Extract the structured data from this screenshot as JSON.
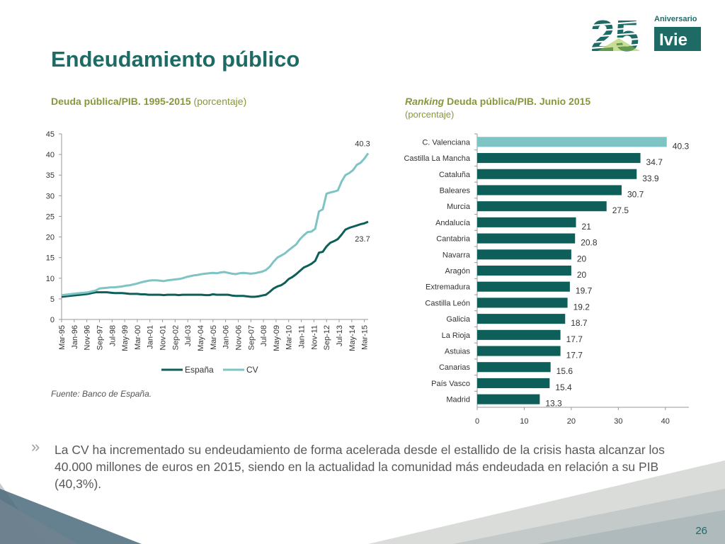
{
  "slide": {
    "title": "Endeudamiento público",
    "left_subtitle_bold": "Deuda pública/PIB. 1995-2015",
    "left_subtitle_normal": "(porcentaje)",
    "right_subtitle_italic": "Ranking",
    "right_subtitle_bold": "Deuda pública/PIB. Junio 2015",
    "right_subtitle_unit": "(porcentaje)",
    "source": "Fuente: Banco de España.",
    "bullet_mark": "»",
    "bullet": "La CV ha incrementado su endeudamiento de forma acelerada desde el estallido de la crisis hasta alcanzar los 40.000 millones de euros en 2015, siendo en la actualidad la comunidad más endeudada en relación a su PIB (40,3%).",
    "page_number": "26"
  },
  "logo": {
    "number": "25",
    "label_top": "Aniversario",
    "label_box": "Ivie",
    "colors": {
      "green_dark": "#1e6b66",
      "green_light": "#9bc23c"
    }
  },
  "colors": {
    "espana": "#0e5f5a",
    "cv": "#7fc4c4",
    "bar_highlight": "#7fc4c4",
    "bar": "#0e5f5a",
    "title": "#1e6b66",
    "subtitle": "#8a9637"
  },
  "chart_data": [
    {
      "type": "line",
      "ylim": [
        0,
        45
      ],
      "yticks": [
        0,
        5,
        10,
        15,
        20,
        25,
        30,
        35,
        40,
        45
      ],
      "x_tick_labels": [
        "Mar-95",
        "Jan-96",
        "Nov-96",
        "Sep-97",
        "Jul-98",
        "May-99",
        "Mar-00",
        "Jan-01",
        "Nov-01",
        "Sep-02",
        "Jul-03",
        "May-04",
        "Mar-05",
        "Jan-06",
        "Nov-06",
        "Sep-07",
        "Jul-08",
        "May-09",
        "Mar-10",
        "Jan-11",
        "Nov-11",
        "Sep-12",
        "Jul-13",
        "May-14",
        "Mar-15"
      ],
      "legend_position": "bottom",
      "legend": [
        "España",
        "CV"
      ],
      "annotations": [
        {
          "series": "CV",
          "text": "40.3"
        },
        {
          "series": "España",
          "text": "23.7"
        }
      ],
      "quarters": [
        "Mar-95",
        "Jun-95",
        "Sep-95",
        "Dec-95",
        "Mar-96",
        "Jun-96",
        "Sep-96",
        "Dec-96",
        "Mar-97",
        "Jun-97",
        "Sep-97",
        "Dec-97",
        "Mar-98",
        "Jun-98",
        "Sep-98",
        "Dec-98",
        "Mar-99",
        "Jun-99",
        "Sep-99",
        "Dec-99",
        "Mar-00",
        "Jun-00",
        "Sep-00",
        "Dec-00",
        "Mar-01",
        "Jun-01",
        "Sep-01",
        "Dec-01",
        "Mar-02",
        "Jun-02",
        "Sep-02",
        "Dec-02",
        "Mar-03",
        "Jun-03",
        "Sep-03",
        "Dec-03",
        "Mar-04",
        "Jun-04",
        "Sep-04",
        "Dec-04",
        "Mar-05",
        "Jun-05",
        "Sep-05",
        "Dec-05",
        "Mar-06",
        "Jun-06",
        "Sep-06",
        "Dec-06",
        "Mar-07",
        "Jun-07",
        "Sep-07",
        "Dec-07",
        "Mar-08",
        "Jun-08",
        "Sep-08",
        "Dec-08",
        "Mar-09",
        "Jun-09",
        "Sep-09",
        "Dec-09",
        "Mar-10",
        "Jun-10",
        "Sep-10",
        "Dec-10",
        "Mar-11",
        "Jun-11",
        "Sep-11",
        "Dec-11",
        "Mar-12",
        "Jun-12",
        "Sep-12",
        "Dec-12",
        "Mar-13",
        "Jun-13",
        "Sep-13",
        "Dec-13",
        "Mar-14",
        "Jun-14",
        "Sep-14",
        "Dec-14",
        "Mar-15",
        "Jun-15"
      ],
      "series": [
        {
          "name": "España",
          "values": [
            5.5,
            5.6,
            5.7,
            5.8,
            5.9,
            6.0,
            6.1,
            6.2,
            6.4,
            6.6,
            6.6,
            6.6,
            6.6,
            6.5,
            6.4,
            6.4,
            6.4,
            6.3,
            6.2,
            6.2,
            6.2,
            6.1,
            6.1,
            6.0,
            6.0,
            6.0,
            6.0,
            5.9,
            6.0,
            6.0,
            6.0,
            5.9,
            6.0,
            6.0,
            6.0,
            6.0,
            6.0,
            6.0,
            5.9,
            5.9,
            6.1,
            6.0,
            6.0,
            6.0,
            6.0,
            5.8,
            5.7,
            5.7,
            5.7,
            5.6,
            5.5,
            5.5,
            5.6,
            5.8,
            6.0,
            6.7,
            7.5,
            8.0,
            8.3,
            8.9,
            9.8,
            10.3,
            11.0,
            11.8,
            12.6,
            13.0,
            13.5,
            14.2,
            16.2,
            16.4,
            17.7,
            18.6,
            19.0,
            19.5,
            20.6,
            21.8,
            22.2,
            22.5,
            22.8,
            23.1,
            23.3,
            23.7
          ]
        },
        {
          "name": "CV",
          "values": [
            5.9,
            6.0,
            6.1,
            6.2,
            6.3,
            6.4,
            6.5,
            6.6,
            6.8,
            7.0,
            7.5,
            7.6,
            7.7,
            7.8,
            7.8,
            7.9,
            8.0,
            8.2,
            8.3,
            8.5,
            8.7,
            9.0,
            9.2,
            9.4,
            9.5,
            9.5,
            9.4,
            9.3,
            9.5,
            9.6,
            9.7,
            9.8,
            10.0,
            10.3,
            10.5,
            10.7,
            10.8,
            11.0,
            11.1,
            11.2,
            11.3,
            11.2,
            11.4,
            11.5,
            11.3,
            11.1,
            11.0,
            11.2,
            11.3,
            11.2,
            11.1,
            11.2,
            11.4,
            11.6,
            12.0,
            12.8,
            14.0,
            15.0,
            15.5,
            16.0,
            16.8,
            17.5,
            18.2,
            19.5,
            20.4,
            21.2,
            21.3,
            22.0,
            26.2,
            26.7,
            30.5,
            30.8,
            31.0,
            31.3,
            33.5,
            35.0,
            35.5,
            36.2,
            37.5,
            38.0,
            39.0,
            40.3
          ]
        }
      ]
    },
    {
      "type": "bar",
      "orientation": "horizontal",
      "xlim": [
        0,
        45
      ],
      "xticks": [
        0,
        10,
        20,
        30,
        40
      ],
      "categories": [
        "C. Valenciana",
        "Castilla La Mancha",
        "Cataluña",
        "Baleares",
        "Murcia",
        "Andalucía",
        "Cantabria",
        "Navarra",
        "Aragón",
        "Extremadura",
        "Castilla León",
        "Galicia",
        "La Rioja",
        "Astuias",
        "Canarias",
        "País Vasco",
        "Madrid"
      ],
      "values": [
        40.3,
        34.7,
        33.9,
        30.7,
        27.5,
        21,
        20.8,
        20,
        20,
        19.7,
        19.2,
        18.7,
        17.7,
        17.7,
        15.6,
        15.4,
        13.3
      ],
      "highlight": "C. Valenciana"
    }
  ]
}
